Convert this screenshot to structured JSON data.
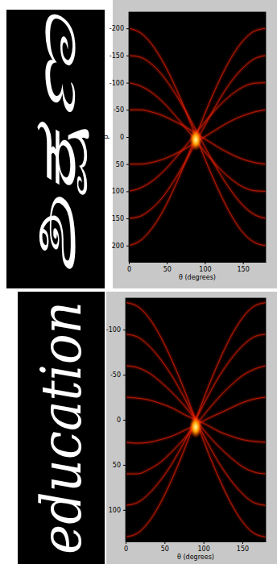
{
  "word_images": [
    {
      "text": "ಶಿಕ್ಷಣ"
    },
    {
      "text": "education"
    }
  ],
  "chart_data": [
    {
      "type": "line",
      "xlabel": "θ (degrees)",
      "ylabel": "ρ",
      "color": "#ff2200",
      "xlim": [
        0,
        180
      ],
      "xticks": [
        0,
        50,
        100,
        150
      ],
      "ylim": [
        -230,
        230
      ],
      "yticks": [
        -200,
        -150,
        -100,
        -50,
        0,
        50,
        100,
        150,
        200
      ],
      "x": [
        0,
        15,
        30,
        45,
        60,
        75,
        90,
        105,
        120,
        135,
        150,
        165,
        180
      ],
      "peak": {
        "x": 88,
        "y": 5
      },
      "series": [
        {
          "values": [
            -200,
            -192,
            -171,
            -138,
            -96,
            -47,
            5,
            57,
            104,
            145,
            176,
            194,
            200
          ]
        },
        {
          "values": [
            -150,
            -147,
            -134,
            -112,
            -82,
            -47,
            -8,
            31,
            68,
            100,
            126,
            143,
            150
          ]
        },
        {
          "values": [
            -100,
            -94,
            -82,
            -64,
            -41,
            -16,
            10,
            36,
            59,
            78,
            92,
            99,
            100
          ]
        },
        {
          "values": [
            -50,
            -50,
            -46,
            -39,
            -29,
            -18,
            -5,
            8,
            21,
            32,
            41,
            47,
            50
          ]
        },
        {
          "values": [
            50,
            50,
            47,
            41,
            32,
            21,
            8,
            -5,
            -18,
            -30,
            -39,
            -46,
            -50
          ]
        },
        {
          "values": [
            100,
            94,
            82,
            64,
            41,
            16,
            -10,
            -36,
            -59,
            -78,
            -92,
            -99,
            -100
          ]
        },
        {
          "values": [
            150,
            146,
            132,
            110,
            79,
            44,
            5,
            -34,
            -71,
            -103,
            -127,
            -144,
            -150
          ]
        },
        {
          "values": [
            200,
            191,
            169,
            136,
            93,
            44,
            -8,
            -60,
            -107,
            -147,
            -177,
            -195,
            -200
          ]
        }
      ]
    },
    {
      "type": "line",
      "xlabel": "θ (degrees)",
      "color": "#ff2200",
      "xlim": [
        0,
        180
      ],
      "xticks": [
        0,
        50,
        100,
        150
      ],
      "ylim": [
        -135,
        135
      ],
      "yticks": [
        -100,
        -50,
        0,
        50,
        100
      ],
      "x": [
        0,
        15,
        30,
        45,
        60,
        75,
        90,
        105,
        120,
        135,
        150,
        165,
        180
      ],
      "peak": {
        "x": 90,
        "y": 8
      },
      "series": [
        {
          "values": [
            -130,
            -126,
            -113,
            -92,
            -65,
            -34,
            0,
            34,
            65,
            92,
            113,
            126,
            130
          ]
        },
        {
          "values": [
            -95,
            -92,
            -82,
            -67,
            -48,
            -25,
            0,
            25,
            48,
            67,
            82,
            92,
            95
          ]
        },
        {
          "values": [
            -60,
            -58,
            -52,
            -42,
            -30,
            -16,
            0,
            16,
            30,
            42,
            52,
            58,
            60
          ]
        },
        {
          "values": [
            -25,
            -24,
            -22,
            -18,
            -13,
            -6,
            0,
            6,
            13,
            18,
            22,
            24,
            25
          ]
        },
        {
          "values": [
            25,
            26,
            25,
            22,
            18,
            12,
            6,
            -1,
            -7,
            -13,
            -19,
            -23,
            -25
          ]
        },
        {
          "values": [
            60,
            60,
            55,
            47,
            35,
            21,
            6,
            -10,
            -25,
            -38,
            -49,
            -56,
            -60
          ]
        },
        {
          "values": [
            95,
            92,
            82,
            67,
            48,
            25,
            0,
            -25,
            -48,
            -67,
            -82,
            -92,
            -95
          ]
        },
        {
          "values": [
            130,
            126,
            113,
            92,
            65,
            34,
            0,
            -34,
            -65,
            -92,
            -113,
            -126,
            -130
          ]
        }
      ]
    }
  ]
}
